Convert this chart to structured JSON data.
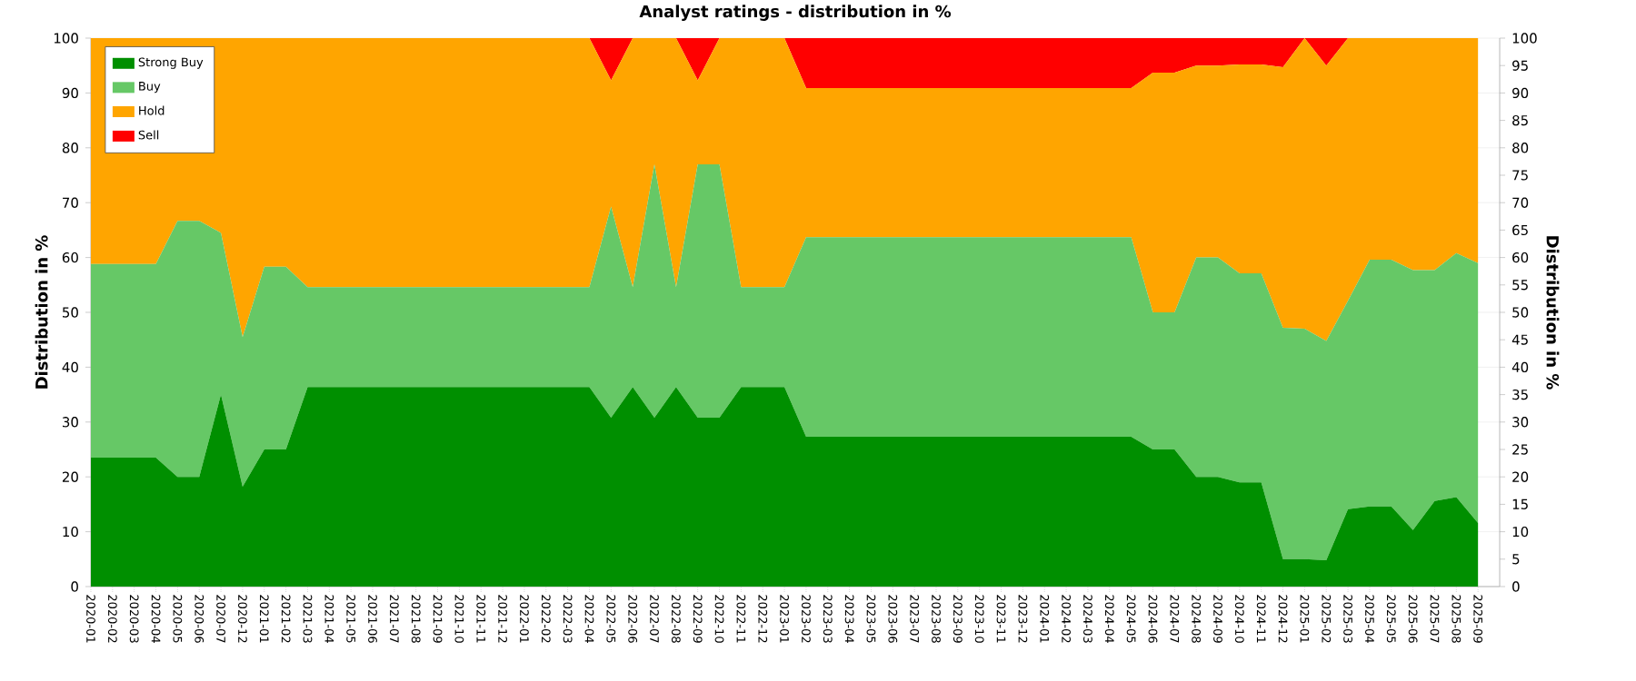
{
  "chart_data": {
    "type": "area",
    "stacked": true,
    "title": "Analyst ratings - distribution in %",
    "ylabel": "Distribution in %",
    "y2label": "Distribution in %",
    "categories": [
      "2020-01",
      "2020-02",
      "2020-03",
      "2020-04",
      "2020-05",
      "2020-06",
      "2020-07",
      "2020-12",
      "2021-01",
      "2021-02",
      "2021-03",
      "2021-04",
      "2021-05",
      "2021-06",
      "2021-07",
      "2021-08",
      "2021-09",
      "2021-10",
      "2021-11",
      "2021-12",
      "2022-01",
      "2022-02",
      "2022-03",
      "2022-04",
      "2022-05",
      "2022-06",
      "2022-07",
      "2022-08",
      "2022-09",
      "2022-10",
      "2022-11",
      "2022-12",
      "2023-01",
      "2023-02",
      "2023-03",
      "2023-04",
      "2023-05",
      "2023-06",
      "2023-07",
      "2023-08",
      "2023-09",
      "2023-10",
      "2023-11",
      "2023-12",
      "2024-01",
      "2024-02",
      "2024-03",
      "2024-04",
      "2024-05",
      "2024-06",
      "2024-07",
      "2024-08",
      "2024-09",
      "2024-10",
      "2024-11",
      "2024-12",
      "2025-01",
      "2025-02",
      "2025-03",
      "2025-04",
      "2025-05",
      "2025-06",
      "2025-07",
      "2025-08",
      "2025-09"
    ],
    "series": [
      {
        "name": "Strong Buy",
        "color": "#008f00",
        "values": [
          23.5,
          23.5,
          23.5,
          23.5,
          20,
          20,
          35,
          18.2,
          25,
          25,
          36.4,
          36.4,
          36.4,
          36.4,
          36.4,
          36.4,
          36.4,
          36.4,
          36.4,
          36.4,
          36.4,
          36.4,
          36.4,
          36.4,
          30.8,
          36.4,
          30.8,
          36.4,
          30.8,
          30.8,
          36.4,
          36.4,
          36.4,
          27.3,
          27.3,
          27.3,
          27.3,
          27.3,
          27.3,
          27.3,
          27.3,
          27.3,
          27.3,
          27.3,
          27.3,
          27.3,
          27.3,
          27.3,
          27.3,
          25,
          25,
          20,
          20,
          19,
          19,
          5,
          5,
          4.8,
          14.1,
          14.6,
          14.6,
          10.3,
          15.6,
          16.3,
          11.6
        ]
      },
      {
        "name": "Buy",
        "color": "#66c866",
        "values": [
          35.3,
          35.3,
          35.3,
          35.3,
          46.7,
          46.7,
          29.5,
          27.3,
          33.3,
          33.3,
          18.2,
          18.2,
          18.2,
          18.2,
          18.2,
          18.2,
          18.2,
          18.2,
          18.2,
          18.2,
          18.2,
          18.2,
          18.2,
          18.2,
          38.5,
          18.2,
          46.2,
          18.2,
          46.2,
          46.2,
          18.2,
          18.2,
          18.2,
          36.4,
          36.4,
          36.4,
          36.4,
          36.4,
          36.4,
          36.4,
          36.4,
          36.4,
          36.4,
          36.4,
          36.4,
          36.4,
          36.4,
          36.4,
          36.4,
          25,
          25,
          40,
          40,
          38.1,
          38.1,
          42.2,
          42,
          40,
          38,
          45,
          45,
          47.4,
          42.1,
          44.5,
          47.4
        ]
      },
      {
        "name": "Hold",
        "color": "#ffa500",
        "values": [
          41.2,
          41.2,
          41.2,
          41.2,
          33.3,
          33.3,
          35.5,
          54.5,
          41.7,
          41.7,
          45.4,
          45.4,
          45.4,
          45.4,
          45.4,
          45.4,
          45.4,
          45.4,
          45.4,
          45.4,
          45.4,
          45.4,
          45.4,
          45.4,
          23,
          45.4,
          23,
          45.4,
          15.3,
          23,
          45.4,
          45.4,
          45.4,
          27.2,
          27.2,
          27.2,
          27.2,
          27.2,
          27.2,
          27.2,
          27.2,
          27.2,
          27.2,
          27.2,
          27.2,
          27.2,
          27.2,
          27.2,
          27.2,
          43.7,
          43.7,
          35,
          35,
          38.1,
          38.1,
          47.5,
          53,
          50.2,
          47.9,
          40.4,
          40.4,
          42.3,
          42.3,
          39.2,
          41
        ]
      },
      {
        "name": "Sell",
        "color": "#ff0000",
        "values": [
          0,
          0,
          0,
          0,
          0,
          0,
          0,
          0,
          0,
          0,
          0,
          0,
          0,
          0,
          0,
          0,
          0,
          0,
          0,
          0,
          0,
          0,
          0,
          0,
          7.7,
          0,
          0,
          0,
          7.7,
          0,
          0,
          0,
          0,
          9.1,
          9.1,
          9.1,
          9.1,
          9.1,
          9.1,
          9.1,
          9.1,
          9.1,
          9.1,
          9.1,
          9.1,
          9.1,
          9.1,
          9.1,
          9.1,
          6.3,
          6.3,
          5,
          5,
          4.8,
          4.8,
          5.3,
          0,
          5,
          0,
          0,
          0,
          0,
          0,
          0,
          0
        ]
      }
    ],
    "ylim": [
      0,
      100
    ],
    "yticks": [
      0,
      10,
      20,
      30,
      40,
      50,
      60,
      70,
      80,
      90,
      100
    ],
    "y2lim": [
      0,
      100
    ],
    "y2ticks": [
      0,
      5,
      10,
      15,
      20,
      25,
      30,
      35,
      40,
      45,
      50,
      55,
      60,
      65,
      70,
      75,
      80,
      85,
      90,
      95,
      100
    ],
    "grid": "y",
    "legend": "top left"
  }
}
